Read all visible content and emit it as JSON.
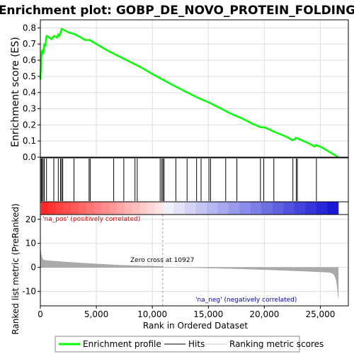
{
  "chart_data": {
    "type": "line",
    "title": "Enrichment plot: GOBP_DE_NOVO_PROTEIN_FOLDING",
    "top_panel": {
      "ylabel": "Enrichment score (ES)",
      "ylim": [
        0,
        0.85
      ],
      "yticks": [
        0.0,
        0.1,
        0.2,
        0.3,
        0.4,
        0.5,
        0.6,
        0.7,
        0.8
      ],
      "ytick_labels": [
        "0.0",
        "0.1",
        "0.2",
        "0.3",
        "0.4",
        "0.5",
        "0.6",
        "0.7",
        "0.8"
      ],
      "series": [
        {
          "name": "Enrichment profile",
          "color": "#00ff00",
          "x": [
            0,
            80,
            150,
            250,
            350,
            450,
            550,
            700,
            1000,
            1200,
            1350,
            1500,
            1600,
            1700,
            1800,
            1900,
            2000,
            2300,
            2600,
            2900,
            3100,
            3500,
            4000,
            4400,
            5000,
            6000,
            7000,
            8000,
            9000,
            10000,
            10927,
            12000,
            13000,
            14000,
            15000,
            16000,
            17000,
            18000,
            19000,
            19700,
            20000,
            20500,
            20800,
            21500,
            22000,
            22500,
            22700,
            22800,
            23000,
            23500,
            24000,
            24500,
            24600,
            25000,
            25500,
            26000,
            26500,
            26600
          ],
          "y": [
            0.48,
            0.62,
            0.66,
            0.64,
            0.7,
            0.69,
            0.75,
            0.745,
            0.73,
            0.75,
            0.745,
            0.74,
            0.76,
            0.75,
            0.77,
            0.795,
            0.79,
            0.78,
            0.77,
            0.765,
            0.76,
            0.745,
            0.725,
            0.725,
            0.7,
            0.66,
            0.625,
            0.59,
            0.555,
            0.515,
            0.48,
            0.44,
            0.405,
            0.37,
            0.34,
            0.305,
            0.27,
            0.24,
            0.205,
            0.185,
            0.185,
            0.17,
            0.16,
            0.14,
            0.125,
            0.105,
            0.11,
            0.12,
            0.115,
            0.1,
            0.085,
            0.065,
            0.075,
            0.065,
            0.045,
            0.025,
            0.005,
            0.0
          ]
        }
      ]
    },
    "hits_panel": {
      "hits": [
        80,
        150,
        250,
        350,
        550,
        1200,
        1600,
        1800,
        1900,
        2000,
        3000,
        4350,
        4450,
        6550,
        7450,
        8450,
        8650,
        10700,
        10850,
        10950,
        11050,
        12100,
        13100,
        13950,
        14350,
        15050,
        15200,
        16550,
        17550,
        19650,
        19950,
        20850,
        22550,
        22850,
        22950,
        24650
      ]
    },
    "bottom_panel": {
      "ylabel": "Ranked list metric (PreRanked)",
      "ylim": [
        -16,
        22
      ],
      "yticks": [
        20,
        10,
        0,
        -10
      ],
      "ytick_labels": [
        "20",
        "10",
        "0",
        "-10"
      ],
      "metric_color": "#aaaaaa",
      "zero_cross": 10927,
      "zero_cross_label": "Zero cross at 10927",
      "pos_label": "'na_pos' (positively correlated)",
      "neg_label": "'na_neg' (negatively correlated)",
      "pos_color": "#cc0000",
      "neg_color": "#0000cc"
    },
    "xlabel": "Rank in Ordered Dataset",
    "xlim": [
      0,
      27500
    ],
    "xticks": [
      0,
      5000,
      10000,
      15000,
      20000,
      25000
    ],
    "xtick_labels": [
      "0",
      "5,000",
      "10,000",
      "15,000",
      "20,000",
      "25,000"
    ],
    "n_genes": 26600,
    "legend": {
      "placement": "bottom",
      "items": [
        {
          "label": "Enrichment profile",
          "color": "#00ff00"
        },
        {
          "label": "Hits",
          "color": "#000000"
        },
        {
          "label": "Ranking metric scores",
          "color": "#cccccc"
        }
      ]
    }
  }
}
